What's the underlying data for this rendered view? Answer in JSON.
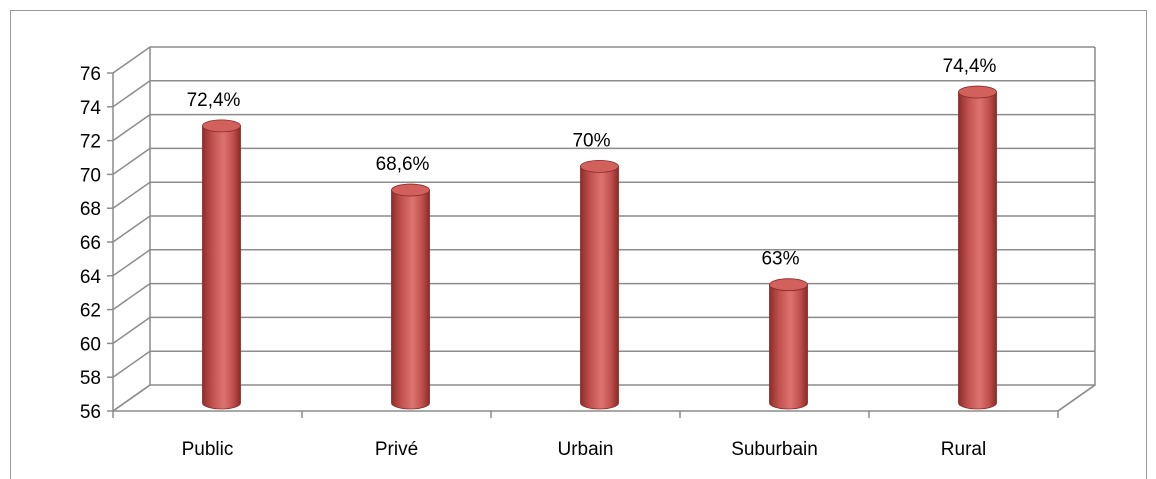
{
  "chart_data": {
    "type": "bar",
    "style": "3d-cylinder",
    "categories": [
      "Public",
      "Privé",
      "Urbain",
      "Suburbain",
      "Rural"
    ],
    "values": [
      72.4,
      68.6,
      70,
      63,
      74.4
    ],
    "data_labels": [
      "72,4%",
      "68,6%",
      "70%",
      "63%",
      "74,4%"
    ],
    "y_ticks": [
      "56",
      "58",
      "60",
      "62",
      "64",
      "66",
      "68",
      "70",
      "72",
      "74",
      "76"
    ],
    "ylim": [
      56,
      76
    ],
    "grid": true,
    "legend": "none",
    "bar_color": "#c0504d",
    "title": "",
    "xlabel": "",
    "ylabel": ""
  }
}
